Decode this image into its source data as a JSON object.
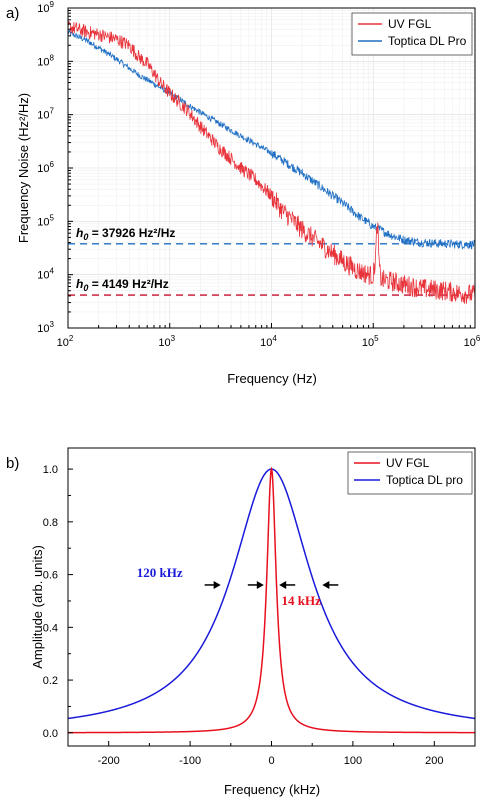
{
  "chart_data": [
    {
      "panel_label": "a)",
      "type": "line",
      "xlabel": "Frequency (Hz)",
      "ylabel": "Frequency Noise (Hz²/Hz)",
      "xscale": "log",
      "yscale": "log",
      "xlim": [
        100,
        1000000
      ],
      "ylim": [
        1000,
        1000000000
      ],
      "x_tick_labels": [
        {
          "value": 100,
          "base": "10",
          "exp": "2"
        },
        {
          "value": 1000,
          "base": "10",
          "exp": "3"
        },
        {
          "value": 10000,
          "base": "10",
          "exp": "4"
        },
        {
          "value": 100000,
          "base": "10",
          "exp": "5"
        },
        {
          "value": 1000000,
          "base": "10",
          "exp": "6"
        }
      ],
      "y_tick_labels": [
        {
          "value": 1000,
          "base": "10",
          "exp": "3"
        },
        {
          "value": 10000,
          "base": "10",
          "exp": "4"
        },
        {
          "value": 100000,
          "base": "10",
          "exp": "5"
        },
        {
          "value": 1000000,
          "base": "10",
          "exp": "6"
        },
        {
          "value": 10000000,
          "base": "10",
          "exp": "7"
        },
        {
          "value": 100000000,
          "base": "10",
          "exp": "8"
        },
        {
          "value": 1000000000,
          "base": "10",
          "exp": "9"
        }
      ],
      "grid": true,
      "legend_position": "top-right",
      "series": [
        {
          "name": "UV FGL",
          "color": "#e8333b",
          "x": [
            100,
            150,
            200,
            300,
            400,
            500,
            600,
            700,
            800,
            1000,
            1500,
            2000,
            3000,
            4000,
            5000,
            7000,
            10000,
            13000,
            15000,
            20000,
            30000,
            40000,
            50000,
            70000,
            90000,
            100000,
            105000,
            110000,
            115000,
            120000,
            150000,
            200000,
            300000,
            500000,
            700000,
            1000000
          ],
          "y": [
            450000000,
            360000000,
            320000000,
            260000000,
            200000000,
            120000000,
            90000000,
            60000000,
            40000000,
            25000000,
            12000000,
            6000000,
            2500000,
            1500000,
            1000000,
            600000,
            300000,
            150000,
            120000,
            70000,
            38000,
            25000,
            18000,
            12000,
            10000,
            9500,
            20000,
            100000,
            12000,
            8000,
            7500,
            6500,
            5500,
            5000,
            4500,
            4200
          ]
        },
        {
          "name": "Toptica DL Pro",
          "color": "#1f6fc4",
          "x": [
            100,
            150,
            200,
            300,
            500,
            700,
            1000,
            2000,
            3000,
            5000,
            7000,
            10000,
            20000,
            30000,
            50000,
            70000,
            100000,
            150000,
            200000,
            300000,
            500000,
            700000,
            1000000
          ],
          "y": [
            350000000,
            250000000,
            180000000,
            110000000,
            55000000,
            38000000,
            25000000,
            11000000,
            7000000,
            4000000,
            2800000,
            1900000,
            800000,
            450000,
            220000,
            130000,
            80000,
            55000,
            45000,
            40000,
            38000,
            37000,
            37000
          ]
        }
      ],
      "reference_lines": [
        {
          "y": 37926,
          "color": "#1f6fc4",
          "sym": "h",
          "sub": "0",
          "label": " = 37926 Hz²/Hz"
        },
        {
          "y": 4149,
          "color": "#c8102e",
          "sym": "h",
          "sub": "0",
          "label": " = 4149 Hz²/Hz"
        }
      ]
    },
    {
      "panel_label": "b)",
      "type": "line",
      "xlabel": "Frequency (kHz)",
      "ylabel": "Amplitude (arb. units)",
      "xlim": [
        -250,
        250
      ],
      "ylim": [
        -0.05,
        1.08
      ],
      "x_ticks": [
        -200,
        -100,
        0,
        100,
        200
      ],
      "y_ticks": [
        0.0,
        0.2,
        0.4,
        0.6,
        0.8,
        1.0
      ],
      "y_tick_labels": [
        "0.0",
        "0.2",
        "0.4",
        "0.6",
        "0.8",
        "1.0"
      ],
      "grid": false,
      "legend_position": "top-right",
      "series": [
        {
          "name": "UV FGL",
          "color": "#e8101e",
          "shape": "lorentzian",
          "center": 0,
          "fwhm": 14,
          "amplitude": 1.0
        },
        {
          "name": "Toptica DL pro",
          "color": "#1a1adb",
          "shape": "lorentzian",
          "center": 0,
          "fwhm": 120,
          "amplitude": 1.0
        }
      ],
      "annotations": [
        {
          "text": "120 kHz",
          "color": "#1a1adb"
        },
        {
          "text": "14 kHz",
          "color": "#e8101e"
        }
      ]
    }
  ]
}
